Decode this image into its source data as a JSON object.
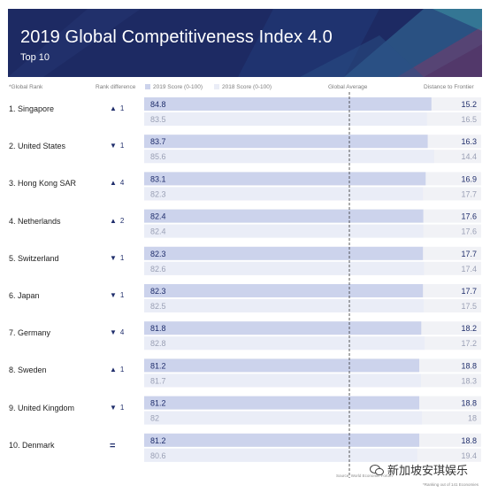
{
  "header": {
    "title": "2019 Global Competitiveness Index 4.0",
    "subtitle": "Top 10"
  },
  "columns": {
    "rank": "*Global Rank",
    "rank_diff": "Rank difference",
    "score_2019": "2019 Score (0-100)",
    "score_2018": "2018 Score (0-100)",
    "global_avg": "Global Average",
    "distance": "Distance to Frontier"
  },
  "rows": [
    {
      "label": "1. Singapore",
      "diff": "1",
      "dir": "up"
    },
    {
      "label": "2. United States",
      "diff": "1",
      "dir": "down"
    },
    {
      "label": "3. Hong Kong SAR",
      "diff": "4",
      "dir": "up"
    },
    {
      "label": "4. Netherlands",
      "diff": "2",
      "dir": "up"
    },
    {
      "label": "5. Switzerland",
      "diff": "1",
      "dir": "down"
    },
    {
      "label": "6. Japan",
      "diff": "1",
      "dir": "down"
    },
    {
      "label": "7. Germany",
      "diff": "4",
      "dir": "down"
    },
    {
      "label": "8. Sweden",
      "diff": "1",
      "dir": "up"
    },
    {
      "label": "9. United Kingdom",
      "diff": "1",
      "dir": "down"
    },
    {
      "label": "10. Denmark",
      "diff": "=",
      "dir": "same"
    }
  ],
  "chart_data": {
    "type": "bar",
    "title": "2019 Global Competitiveness Index 4.0",
    "categories": [
      "Singapore",
      "United States",
      "Hong Kong SAR",
      "Netherlands",
      "Switzerland",
      "Japan",
      "Germany",
      "Sweden",
      "United Kingdom",
      "Denmark"
    ],
    "series": [
      {
        "name": "2019 Score (0-100)",
        "values": [
          84.8,
          83.7,
          83.1,
          82.4,
          82.3,
          82.3,
          81.8,
          81.2,
          81.2,
          81.2
        ],
        "labels": [
          "84.8",
          "83.7",
          "83.1",
          "82.4",
          "82.3",
          "82.3",
          "81.8",
          "81.2",
          "81.2",
          "81.2"
        ]
      },
      {
        "name": "2018 Score (0-100)",
        "values": [
          83.5,
          85.6,
          82.3,
          82.4,
          82.6,
          82.5,
          82.8,
          81.7,
          82.0,
          80.6
        ],
        "labels": [
          "83.5",
          "85.6",
          "82.3",
          "82.4",
          "82.6",
          "82.5",
          "82.8",
          "81.7",
          "82",
          "80.6"
        ]
      }
    ],
    "distance_to_frontier": {
      "2019": [
        "15.2",
        "16.3",
        "16.9",
        "17.6",
        "17.7",
        "17.7",
        "18.2",
        "18.8",
        "18.8",
        "18.8"
      ],
      "2018": [
        "16.5",
        "14.4",
        "17.7",
        "17.6",
        "17.4",
        "17.5",
        "17.2",
        "18.3",
        "18",
        "19.4"
      ]
    },
    "xlim": [
      0,
      100
    ],
    "reference_line": "Global Average",
    "colors": {
      "bar_2019": "#ccd3ec",
      "bar_2018": "#eaedf7",
      "text_2019": "#1f2d6b",
      "text_2018": "#9aa0b5",
      "track": "#f1f2f6",
      "banner": "#1c2a66"
    }
  },
  "footer": {
    "source": "Source: World Economic Forum",
    "note": "*Ranking out of 141 Economies"
  },
  "watermark": {
    "text": "新加坡安琪娱乐"
  }
}
